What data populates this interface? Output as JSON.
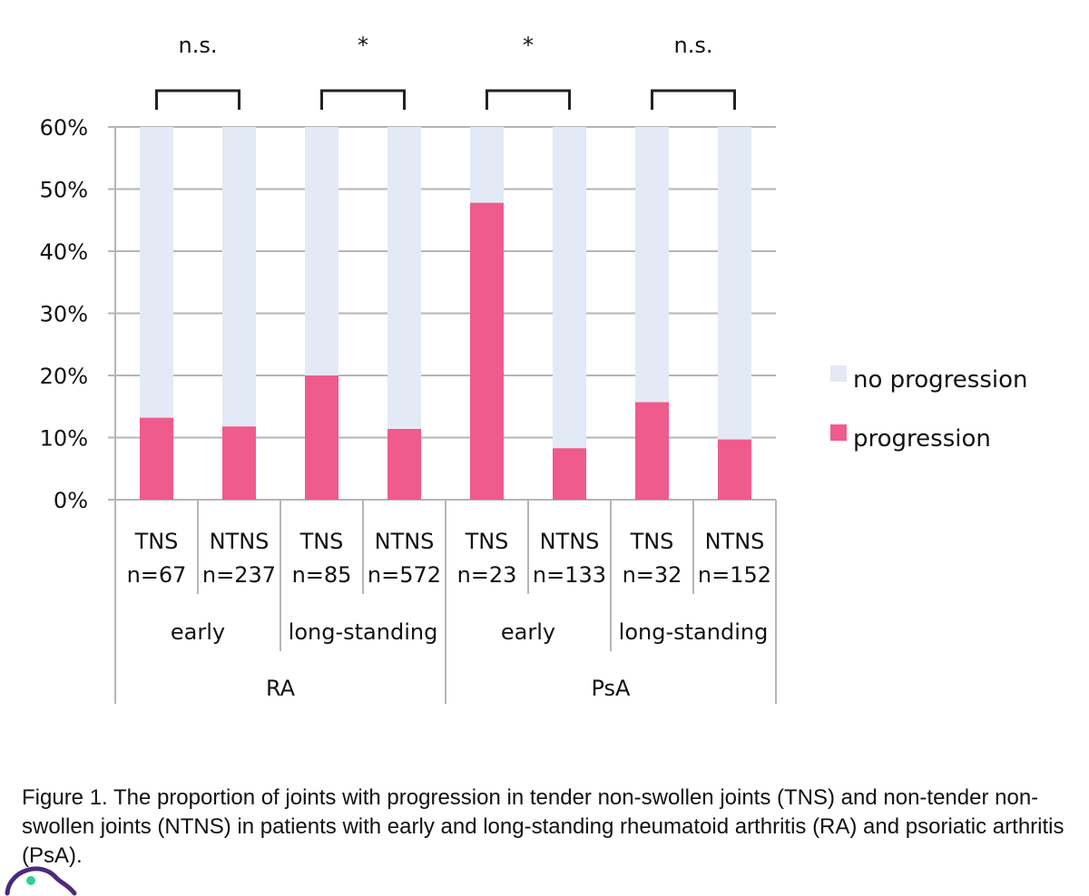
{
  "chart_data": {
    "type": "bar",
    "stacked": true,
    "y_ticks": [
      "60%",
      "50%",
      "40%",
      "30%",
      "20%",
      "10%",
      "0%"
    ],
    "ylim": [
      0,
      60
    ],
    "grid": true,
    "categories": [
      {
        "label": "TNS",
        "n": "n=67"
      },
      {
        "label": "NTNS",
        "n": "n=237"
      },
      {
        "label": "TNS",
        "n": "n=85"
      },
      {
        "label": "NTNS",
        "n": "n=572"
      },
      {
        "label": "TNS",
        "n": "n=23"
      },
      {
        "label": "NTNS",
        "n": "n=133"
      },
      {
        "label": "TNS",
        "n": "n=32"
      },
      {
        "label": "NTNS",
        "n": "n=152"
      }
    ],
    "subgroups": [
      "early",
      "long-standing",
      "early",
      "long-standing"
    ],
    "groups": [
      "RA",
      "PsA"
    ],
    "series": [
      {
        "name": "progression",
        "color": "#ef5b8c",
        "values": [
          13.2,
          11.8,
          20.0,
          11.4,
          47.8,
          8.3,
          15.7,
          9.7
        ]
      },
      {
        "name": "no progression",
        "color": "#e3eaf5",
        "values": [
          46.8,
          48.2,
          40.0,
          48.6,
          12.2,
          51.7,
          44.3,
          50.3
        ]
      }
    ],
    "legend_position": "right",
    "legend": [
      "no progression",
      "progression"
    ],
    "significance": [
      "n.s.",
      "*",
      "*",
      "n.s."
    ]
  },
  "caption": "Figure 1. The proportion of joints with progression in tender non-swollen joints (TNS) and non-tender non-swollen joints (NTNS) in patients with early and long-standing rheumatoid arthritis (RA) and psoriatic arthritis (PsA)."
}
